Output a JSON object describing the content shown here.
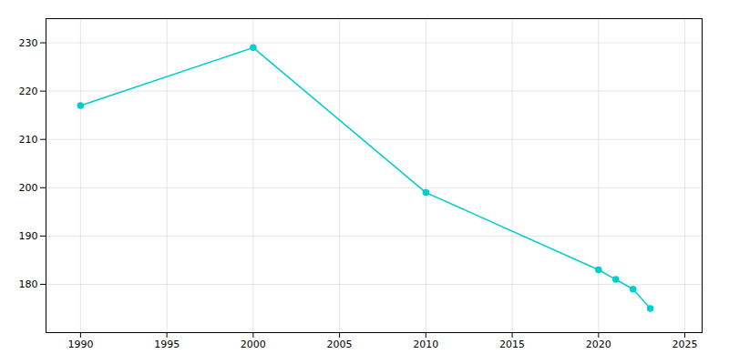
{
  "chart_data": {
    "type": "line",
    "x": [
      1990,
      2000,
      2010,
      2020,
      2021,
      2022,
      2023
    ],
    "values": [
      217,
      229,
      199,
      183,
      181,
      179,
      175
    ],
    "color": "#00CDCD",
    "marker": "circle",
    "xlim": [
      1988,
      2026
    ],
    "ylim": [
      170,
      235
    ],
    "xticks": [
      1990,
      1995,
      2000,
      2005,
      2010,
      2015,
      2020,
      2025
    ],
    "yticks": [
      180,
      190,
      200,
      210,
      220,
      230
    ],
    "grid": true
  }
}
